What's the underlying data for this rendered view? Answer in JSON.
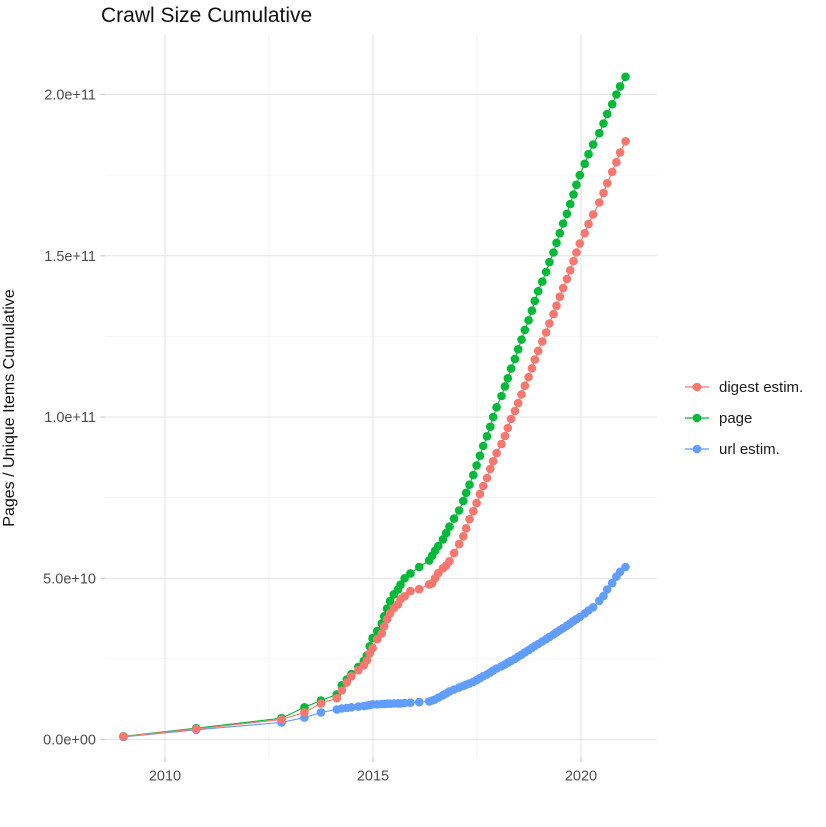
{
  "chart": {
    "title": "Crawl Size Cumulative",
    "y_axis_title": "Pages / Unique Items Cumulative"
  },
  "chart_data": {
    "type": "line",
    "title": "Crawl Size Cumulative",
    "xlabel": "",
    "ylabel": "Pages / Unique Items Cumulative",
    "legend_position": "right",
    "grid": true,
    "marker": "circle",
    "values_unit": "billions (1e9) of pages / unique items, cumulative",
    "x_unit": "crawl date as decimal year",
    "x_axis": {
      "ticks": [
        2010,
        2015,
        2020
      ],
      "tick_labels": [
        "2010",
        "2015",
        "2020"
      ],
      "minor_ticks": [
        2012.5,
        2017.5
      ],
      "range": [
        2008.55,
        2021.85
      ]
    },
    "y_axis": {
      "ticks_1e9": [
        0,
        50,
        100,
        150,
        200
      ],
      "tick_labels": [
        "0.0e+00",
        "5.0e+10",
        "1.0e+11",
        "1.5e+11",
        "2.0e+11"
      ],
      "minor_ticks_1e9": [
        25,
        75,
        125,
        175
      ],
      "range_1e9": [
        -6,
        218
      ]
    },
    "x": [
      2009.0,
      2010.75,
      2012.8,
      2013.35,
      2013.75,
      2014.13,
      2014.25,
      2014.37,
      2014.48,
      2014.65,
      2014.78,
      2014.85,
      2014.92,
      2014.99,
      2015.1,
      2015.21,
      2015.27,
      2015.34,
      2015.41,
      2015.5,
      2015.6,
      2015.66,
      2015.76,
      2015.9,
      2016.11,
      2016.35,
      2016.42,
      2016.49,
      2016.57,
      2016.68,
      2016.76,
      2016.84,
      2016.95,
      2017.07,
      2017.17,
      2017.24,
      2017.32,
      2017.41,
      2017.49,
      2017.57,
      2017.65,
      2017.74,
      2017.82,
      2017.89,
      2017.97,
      2018.09,
      2018.17,
      2018.24,
      2018.32,
      2018.41,
      2018.49,
      2018.57,
      2018.65,
      2018.74,
      2018.82,
      2018.89,
      2018.97,
      2019.07,
      2019.16,
      2019.24,
      2019.34,
      2019.41,
      2019.49,
      2019.57,
      2019.66,
      2019.74,
      2019.82,
      2019.89,
      2019.97,
      2020.09,
      2020.18,
      2020.29,
      2020.44,
      2020.54,
      2020.63,
      2020.75,
      2020.85,
      2020.94,
      2021.07
    ],
    "series": [
      {
        "name": "digest estim.",
        "color": "#F8766D",
        "values_1e9": [
          0.9,
          3.3,
          6.2,
          8.4,
          11.2,
          12.8,
          15.2,
          17.7,
          19.6,
          21.5,
          23.0,
          24.5,
          26.7,
          28.3,
          31.1,
          32.9,
          35.1,
          37.3,
          39.1,
          40.7,
          41.9,
          43.5,
          44.4,
          46.0,
          46.6,
          48.1,
          48.4,
          50.0,
          51.6,
          53.1,
          54.0,
          55.3,
          57.8,
          60.6,
          63.0,
          65.5,
          68.3,
          70.8,
          73.3,
          76.1,
          78.6,
          81.1,
          83.9,
          86.3,
          88.8,
          91.6,
          94.1,
          96.6,
          99.4,
          101.9,
          104.3,
          107.0,
          109.7,
          112.4,
          115.1,
          117.8,
          120.5,
          123.4,
          126.2,
          129.0,
          131.9,
          134.5,
          137.3,
          140.0,
          142.8,
          145.5,
          148.3,
          151.0,
          153.8,
          157.0,
          159.8,
          162.8,
          166.5,
          169.5,
          172.5,
          176.0,
          179.0,
          182.0,
          185.5
        ]
      },
      {
        "name": "page",
        "color": "#00BA38",
        "values_1e9": [
          1.0,
          3.5,
          6.6,
          10.0,
          12.1,
          14.0,
          16.8,
          18.6,
          20.3,
          22.5,
          24.3,
          26.0,
          28.9,
          31.4,
          33.6,
          36.0,
          38.2,
          40.6,
          42.9,
          45.0,
          46.5,
          48.0,
          50.0,
          51.5,
          53.5,
          55.5,
          57.0,
          58.5,
          60.0,
          62.0,
          64.0,
          66.0,
          68.5,
          71.0,
          74.0,
          76.5,
          79.0,
          82.0,
          85.0,
          88.0,
          91.0,
          94.0,
          97.0,
          100.0,
          103.0,
          106.5,
          109.5,
          112.0,
          115.0,
          118.0,
          121.0,
          124.0,
          127.0,
          130.0,
          133.0,
          136.0,
          139.0,
          142.0,
          145.0,
          148.0,
          151.0,
          154.0,
          157.0,
          160.0,
          163.0,
          166.0,
          169.0,
          172.0,
          175.0,
          178.5,
          181.5,
          184.5,
          188.0,
          191.0,
          194.0,
          197.0,
          200.0,
          202.5,
          205.5
        ]
      },
      {
        "name": "url estim.",
        "color": "#619CFF",
        "values_1e9": [
          0.8,
          3.0,
          5.3,
          6.8,
          8.4,
          9.3,
          9.6,
          9.8,
          10.0,
          10.2,
          10.4,
          10.5,
          10.7,
          10.9,
          10.9,
          11.0,
          11.0,
          11.1,
          11.1,
          11.2,
          11.2,
          11.2,
          11.3,
          11.4,
          11.6,
          11.8,
          12.1,
          12.4,
          13.0,
          13.7,
          14.3,
          14.9,
          15.5,
          16.1,
          16.6,
          17.0,
          17.4,
          17.9,
          18.4,
          19.0,
          19.6,
          20.2,
          20.8,
          21.4,
          22.0,
          22.7,
          23.3,
          23.8,
          24.4,
          25.0,
          25.7,
          26.3,
          27.0,
          27.7,
          28.4,
          29.0,
          29.6,
          30.4,
          31.1,
          31.8,
          32.6,
          33.2,
          33.9,
          34.5,
          35.3,
          36.0,
          36.7,
          37.3,
          38.0,
          39.1,
          40.0,
          41.0,
          43.0,
          44.5,
          46.5,
          48.5,
          50.5,
          52.0,
          53.5
        ]
      }
    ],
    "style_colors": {
      "background": "#ffffff",
      "grid_major": "#e4e4e4",
      "grid_minor": "#f1f1f1",
      "tick_mark": "#cccccc",
      "tick_label_text": "#4d4d4d",
      "title_text": "#111111"
    }
  }
}
